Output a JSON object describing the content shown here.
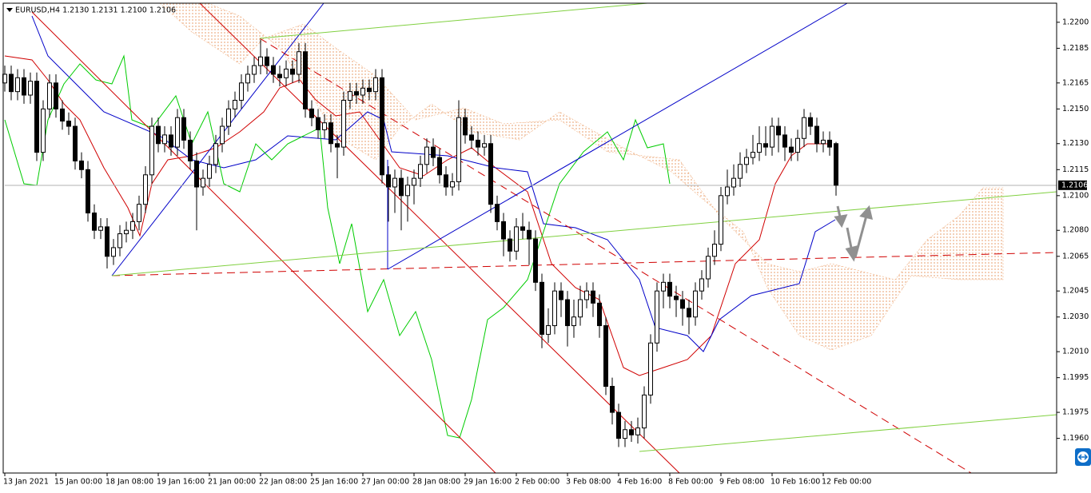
{
  "chart_data": {
    "type": "candlestick",
    "title": "EURUSD,H4  1.2130 1.2131 1.2100 1.2106",
    "categories": [
      "13 Jan 2021",
      null,
      null,
      null,
      null,
      null,
      null,
      null,
      "15 Jan 00:00",
      null,
      null,
      null,
      null,
      null,
      null,
      null,
      "18 Jan 08:00",
      null,
      null,
      null,
      null,
      null,
      null,
      null,
      "19 Jan 16:00",
      null,
      null,
      null,
      null,
      null,
      null,
      null,
      "21 Jan 00:00",
      null,
      null,
      null,
      null,
      null,
      null,
      null,
      "22 Jan 08:00",
      null,
      null,
      null,
      null,
      null,
      null,
      null,
      "25 Jan 16:00",
      null,
      null,
      null,
      null,
      null,
      null,
      null,
      "27 Jan 00:00",
      null,
      null,
      null,
      null,
      null,
      null,
      null,
      "28 Jan 08:00",
      null,
      null,
      null,
      null,
      null,
      null,
      null,
      "29 Jan 16:00",
      null,
      null,
      null,
      null,
      null,
      null,
      null,
      "2 Feb 00:00",
      null,
      null,
      null,
      null,
      null,
      null,
      null,
      "3 Feb 08:00",
      null,
      null,
      null,
      null,
      null,
      null,
      null,
      "4 Feb 16:00",
      null,
      null,
      null,
      null,
      null,
      null,
      null,
      "8 Feb 00:00",
      null,
      null,
      null,
      null,
      null,
      null,
      null,
      "9 Feb 08:00",
      null,
      null,
      null,
      null,
      null,
      null,
      null,
      "10 Feb 16:00",
      null,
      null,
      null,
      null,
      null,
      null,
      null,
      "12 Feb 00:00",
      null,
      null
    ],
    "ohlc": [
      [
        1.2165,
        1.2175,
        1.216,
        1.217
      ],
      [
        1.217,
        1.2175,
        1.2155,
        1.216
      ],
      [
        1.216,
        1.2173,
        1.2155,
        1.2168
      ],
      [
        1.2168,
        1.2173,
        1.2153,
        1.2158
      ],
      [
        1.2158,
        1.2171,
        1.2153,
        1.2166
      ],
      [
        1.2166,
        1.2171,
        1.212,
        1.2125
      ],
      [
        1.2125,
        1.2155,
        1.212,
        1.215
      ],
      [
        1.215,
        1.217,
        1.2145,
        1.2165
      ],
      [
        1.2165,
        1.217,
        1.2145,
        1.215
      ],
      [
        1.215,
        1.2155,
        1.2138,
        1.2143
      ],
      [
        1.2143,
        1.2148,
        1.2135,
        1.214
      ],
      [
        1.214,
        1.2145,
        1.2115,
        1.212
      ],
      [
        1.212,
        1.2125,
        1.211,
        1.2115
      ],
      [
        1.2115,
        1.212,
        1.2085,
        1.209
      ],
      [
        1.209,
        1.2095,
        1.2075,
        1.208
      ],
      [
        1.208,
        1.2087,
        1.2075,
        1.2082
      ],
      [
        1.2082,
        1.2087,
        1.2058,
        1.2065
      ],
      [
        1.2065,
        1.2075,
        1.206,
        1.207
      ],
      [
        1.207,
        1.2083,
        1.2065,
        1.2078
      ],
      [
        1.2078,
        1.2085,
        1.2073,
        1.208
      ],
      [
        1.208,
        1.209,
        1.2075,
        1.2085
      ],
      [
        1.2085,
        1.21,
        1.208,
        1.2095
      ],
      [
        1.2095,
        1.2117,
        1.209,
        1.2112
      ],
      [
        1.2112,
        1.2145,
        1.2107,
        1.214
      ],
      [
        1.214,
        1.2145,
        1.2125,
        1.213
      ],
      [
        1.213,
        1.214,
        1.2125,
        1.2135
      ],
      [
        1.2135,
        1.214,
        1.2123,
        1.2128
      ],
      [
        1.2128,
        1.215,
        1.2123,
        1.2145
      ],
      [
        1.2145,
        1.215,
        1.2127,
        1.2132
      ],
      [
        1.2132,
        1.2137,
        1.2115,
        1.212
      ],
      [
        1.212,
        1.2125,
        1.208,
        1.2105
      ],
      [
        1.2105,
        1.2115,
        1.21,
        1.211
      ],
      [
        1.211,
        1.2123,
        1.2105,
        1.2118
      ],
      [
        1.2118,
        1.2135,
        1.2113,
        1.213
      ],
      [
        1.213,
        1.2145,
        1.2125,
        1.214
      ],
      [
        1.214,
        1.2155,
        1.2135,
        1.215
      ],
      [
        1.215,
        1.216,
        1.2145,
        1.2155
      ],
      [
        1.2155,
        1.217,
        1.215,
        1.2165
      ],
      [
        1.2165,
        1.2175,
        1.216,
        1.217
      ],
      [
        1.217,
        1.218,
        1.2165,
        1.2175
      ],
      [
        1.2175,
        1.219,
        1.217,
        1.218
      ],
      [
        1.218,
        1.2185,
        1.217,
        1.2175
      ],
      [
        1.2175,
        1.218,
        1.2165,
        1.217
      ],
      [
        1.217,
        1.2175,
        1.2163,
        1.2168
      ],
      [
        1.2168,
        1.2178,
        1.2163,
        1.2173
      ],
      [
        1.2173,
        1.2178,
        1.2165,
        1.217
      ],
      [
        1.217,
        1.2188,
        1.2165,
        1.2183
      ],
      [
        1.2183,
        1.2188,
        1.2145,
        1.215
      ],
      [
        1.215,
        1.2155,
        1.214,
        1.2145
      ],
      [
        1.2145,
        1.215,
        1.2133,
        1.2138
      ],
      [
        1.2138,
        1.2147,
        1.2133,
        1.2142
      ],
      [
        1.2142,
        1.2147,
        1.2125,
        1.213
      ],
      [
        1.213,
        1.2135,
        1.211,
        1.2128
      ],
      [
        1.2128,
        1.216,
        1.2123,
        1.2155
      ],
      [
        1.2155,
        1.2165,
        1.215,
        1.216
      ],
      [
        1.216,
        1.2165,
        1.2153,
        1.2158
      ],
      [
        1.2158,
        1.2167,
        1.2153,
        1.2162
      ],
      [
        1.2162,
        1.2167,
        1.2155,
        1.216
      ],
      [
        1.216,
        1.2173,
        1.2155,
        1.2168
      ],
      [
        1.2168,
        1.2173,
        1.2107,
        1.2112
      ],
      [
        1.2112,
        1.2117,
        1.2085,
        1.2105
      ],
      [
        1.2105,
        1.2115,
        1.209,
        1.211
      ],
      [
        1.211,
        1.2115,
        1.208,
        1.21
      ],
      [
        1.21,
        1.2111,
        1.2085,
        1.2106
      ],
      [
        1.2106,
        1.2115,
        1.2095,
        1.211
      ],
      [
        1.211,
        1.2123,
        1.2105,
        1.2118
      ],
      [
        1.2118,
        1.2133,
        1.2113,
        1.2128
      ],
      [
        1.2128,
        1.2133,
        1.2117,
        1.2122
      ],
      [
        1.2122,
        1.2127,
        1.2107,
        1.2112
      ],
      [
        1.2112,
        1.2117,
        1.21,
        1.2105
      ],
      [
        1.2105,
        1.2113,
        1.21,
        1.2108
      ],
      [
        1.2108,
        1.2155,
        1.2103,
        1.2145
      ],
      [
        1.2145,
        1.215,
        1.213,
        1.2135
      ],
      [
        1.2135,
        1.214,
        1.2127,
        1.2132
      ],
      [
        1.2132,
        1.2137,
        1.2123,
        1.2128
      ],
      [
        1.2128,
        1.2135,
        1.2123,
        1.213
      ],
      [
        1.213,
        1.2135,
        1.209,
        1.2095
      ],
      [
        1.2095,
        1.21,
        1.208,
        1.2085
      ],
      [
        1.2085,
        1.209,
        1.2065,
        1.2075
      ],
      [
        1.2075,
        1.208,
        1.2062,
        1.2068
      ],
      [
        1.2068,
        1.2087,
        1.2063,
        1.2082
      ],
      [
        1.2082,
        1.209,
        1.2075,
        1.208
      ],
      [
        1.208,
        1.2085,
        1.206,
        1.2075
      ],
      [
        1.2075,
        1.208,
        1.2045,
        1.205
      ],
      [
        1.205,
        1.2055,
        1.2012,
        1.202
      ],
      [
        1.202,
        1.2035,
        1.2015,
        1.2025
      ],
      [
        1.2025,
        1.205,
        1.202,
        1.2045
      ],
      [
        1.2045,
        1.205,
        1.203,
        1.204
      ],
      [
        1.204,
        1.2045,
        1.2013,
        1.2025
      ],
      [
        1.2025,
        1.204,
        1.2018,
        1.203
      ],
      [
        1.203,
        1.2048,
        1.2025,
        1.204
      ],
      [
        1.204,
        1.205,
        1.2035,
        1.2045
      ],
      [
        1.2045,
        1.205,
        1.203,
        1.2038
      ],
      [
        1.2038,
        1.2043,
        1.2018,
        1.2025
      ],
      [
        1.2025,
        1.203,
        1.1985,
        1.199
      ],
      [
        1.199,
        1.1995,
        1.1968,
        1.1975
      ],
      [
        1.1975,
        1.198,
        1.1955,
        1.196
      ],
      [
        1.196,
        1.197,
        1.1955,
        1.1965
      ],
      [
        1.1965,
        1.197,
        1.1958,
        1.1962
      ],
      [
        1.1962,
        1.1972,
        1.1957,
        1.1966
      ],
      [
        1.1966,
        1.199,
        1.196,
        1.1985
      ],
      [
        1.1985,
        1.202,
        1.198,
        1.2015
      ],
      [
        1.2015,
        1.205,
        1.201,
        1.2045
      ],
      [
        1.2045,
        1.2055,
        1.2035,
        1.205
      ],
      [
        1.205,
        1.2055,
        1.2035,
        1.2042
      ],
      [
        1.2042,
        1.2048,
        1.203,
        1.204
      ],
      [
        1.204,
        1.2045,
        1.2025,
        1.2035
      ],
      [
        1.2035,
        1.204,
        1.202,
        1.203
      ],
      [
        1.203,
        1.205,
        1.2025,
        1.2045
      ],
      [
        1.2045,
        1.2057,
        1.204,
        1.2052
      ],
      [
        1.2052,
        1.207,
        1.2047,
        1.2065
      ],
      [
        1.2065,
        1.208,
        1.206,
        1.2072
      ],
      [
        1.2072,
        1.2105,
        1.2068,
        1.21
      ],
      [
        1.21,
        1.2115,
        1.2095,
        1.2105
      ],
      [
        1.2105,
        1.2118,
        1.21,
        1.211
      ],
      [
        1.211,
        1.2125,
        1.2105,
        1.2118
      ],
      [
        1.2118,
        1.2127,
        1.2113,
        1.2122
      ],
      [
        1.2122,
        1.2135,
        1.2118,
        1.2125
      ],
      [
        1.2125,
        1.214,
        1.212,
        1.213
      ],
      [
        1.213,
        1.214,
        1.2123,
        1.2128
      ],
      [
        1.2128,
        1.2145,
        1.2123,
        1.214
      ],
      [
        1.214,
        1.2145,
        1.2125,
        1.2135
      ],
      [
        1.2135,
        1.214,
        1.212,
        1.2128
      ],
      [
        1.2128,
        1.2133,
        1.212,
        1.2125
      ],
      [
        1.2125,
        1.2138,
        1.212,
        1.2133
      ],
      [
        1.2133,
        1.215,
        1.2128,
        1.2145
      ],
      [
        1.2145,
        1.2148,
        1.2135,
        1.214
      ],
      [
        1.214,
        1.2145,
        1.2125,
        1.213
      ],
      [
        1.213,
        1.2137,
        1.2125,
        1.2132
      ],
      [
        1.2132,
        1.2137,
        1.2123,
        1.2128
      ],
      [
        1.213,
        1.2131,
        1.21,
        1.2106
      ]
    ],
    "ylim": [
      1.194,
      1.2211
    ],
    "yticks": [
      {
        "value": 1.22,
        "label": "1.2200"
      },
      {
        "value": 1.2185,
        "label": "1.2185"
      },
      {
        "value": 1.2165,
        "label": "1.2165"
      },
      {
        "value": 1.215,
        "label": "1.2150"
      },
      {
        "value": 1.213,
        "label": "1.2130"
      },
      {
        "value": 1.2115,
        "label": "1.2115"
      },
      {
        "value": 1.21,
        "label": "1.2100"
      },
      {
        "value": 1.208,
        "label": "1.2080"
      },
      {
        "value": 1.2065,
        "label": "1.2065"
      },
      {
        "value": 1.2045,
        "label": "1.2045"
      },
      {
        "value": 1.203,
        "label": "1.2030"
      },
      {
        "value": 1.201,
        "label": "1.2010"
      },
      {
        "value": 1.1995,
        "label": "1.1995"
      },
      {
        "value": 1.1975,
        "label": "1.1975"
      },
      {
        "value": 1.196,
        "label": "1.1960"
      }
    ],
    "current_price": 1.2106,
    "up_color": "#ffffff",
    "down_color": "#000000",
    "grid": false
  }
}
